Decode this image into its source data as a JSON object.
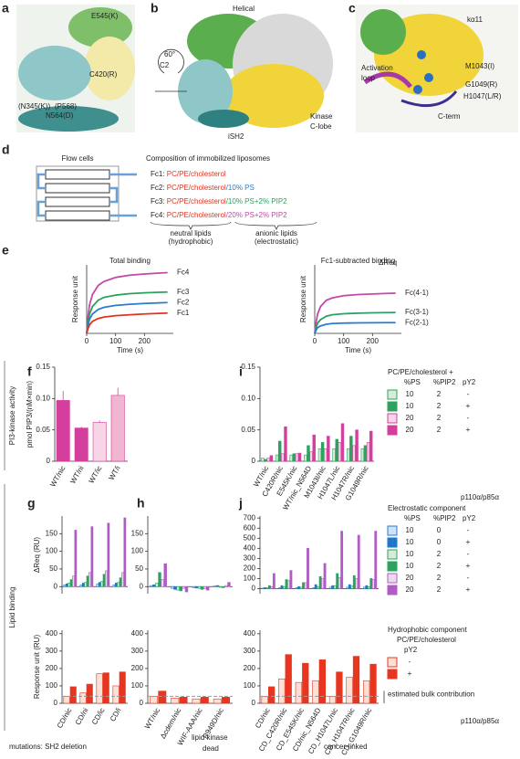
{
  "figure": {
    "panel_labels": [
      "a",
      "b",
      "c",
      "d",
      "e",
      "f",
      "g",
      "h",
      "i",
      "j"
    ],
    "a_labels": [
      "E545(K)",
      "C420(R)",
      "(N345(K))",
      "(P568)",
      "N564(D)"
    ],
    "b_labels": [
      "Helical",
      "C2",
      "iSH2",
      "Kinase",
      "C-lobe",
      "60°"
    ],
    "c_labels": [
      "kα11",
      "Activation",
      "loop",
      "M1043(I)",
      "G1049(R)",
      "H1047(L/R)",
      "C-term"
    ],
    "d": {
      "flow_title": "Flow cells",
      "comp_title": "Composition of immobilized liposomes",
      "rows": [
        [
          "Fc1: ",
          "PC/PE/cholesterol"
        ],
        [
          "Fc2: ",
          "PC/PE/cholesterol",
          "/10% PS"
        ],
        [
          "Fc3: ",
          "PC/PE/cholesterol",
          "/10% PS+2% PIP2"
        ],
        [
          "Fc4: ",
          "PC/PE/cholesterol",
          "/20% PS+2% PIP2"
        ]
      ],
      "row_colors": [
        [
          "#222",
          "#e3321e"
        ],
        [
          "#222",
          "#e3321e",
          "#2b7bd0"
        ],
        [
          "#222",
          "#e3321e",
          "#2ca25f"
        ],
        [
          "#222",
          "#e3321e",
          "#c548a8"
        ]
      ],
      "neutral": [
        "neutral lipids",
        "(hydrophobic)"
      ],
      "anionic": [
        "anionic lipids",
        "(electrostatic)"
      ]
    },
    "side_labels": [
      "PI3-kinase activity",
      "Lipid binding"
    ],
    "bottom_labels": [
      "mutations:  SH2 deletion",
      "lipid kinase",
      "dead",
      "cancer-linked"
    ]
  },
  "chart_data": [
    {
      "type": "line",
      "title": "Total binding",
      "xlabel": "Time (s)",
      "ylabel": "Response unit",
      "xlim": [
        0,
        300
      ],
      "xticks": [
        0,
        100,
        200
      ],
      "ylim": [
        0,
        600
      ],
      "x": [
        0,
        5,
        10,
        20,
        40,
        60,
        100,
        150,
        200,
        250,
        280
      ],
      "series": [
        {
          "name": "Fc4",
          "color": "#c548a8",
          "values": [
            0,
            150,
            250,
            340,
            420,
            455,
            490,
            510,
            520,
            528,
            532
          ]
        },
        {
          "name": "Fc3",
          "color": "#2ca25f",
          "values": [
            0,
            100,
            170,
            235,
            290,
            315,
            335,
            348,
            355,
            360,
            362
          ]
        },
        {
          "name": "Fc2",
          "color": "#2b7bd0",
          "values": [
            0,
            75,
            125,
            170,
            210,
            228,
            245,
            255,
            262,
            267,
            270
          ]
        },
        {
          "name": "Fc1",
          "color": "#e3321e",
          "values": [
            0,
            45,
            75,
            105,
            130,
            143,
            155,
            163,
            170,
            175,
            178
          ]
        }
      ]
    },
    {
      "type": "line",
      "title": "Fc1-subtracted binding",
      "xlabel": "Time (s)",
      "ylabel": "Response unit",
      "annotation": "ΔReq",
      "xlim": [
        0,
        300
      ],
      "xticks": [
        0,
        100,
        200
      ],
      "ylim": [
        0,
        600
      ],
      "x": [
        0,
        5,
        10,
        20,
        40,
        60,
        100,
        150,
        200,
        250,
        280
      ],
      "series": [
        {
          "name": "Fc(4-1)",
          "color": "#c548a8",
          "values": [
            0,
            100,
            170,
            235,
            290,
            310,
            330,
            340,
            345,
            350,
            352
          ]
        },
        {
          "name": "Fc(3-1)",
          "color": "#2ca25f",
          "values": [
            0,
            50,
            90,
            120,
            150,
            163,
            172,
            177,
            180,
            182,
            183
          ]
        },
        {
          "name": "Fc(2-1)",
          "color": "#2b7bd0",
          "values": [
            0,
            30,
            50,
            65,
            80,
            86,
            90,
            92,
            93,
            94,
            94
          ]
        }
      ]
    },
    {
      "type": "bar",
      "ylabel": "pmol PIP3/(nM×min)",
      "ylim": [
        0,
        0.15
      ],
      "yticks": [
        0,
        0.05,
        {
          "value": 0.1,
          "label": "0.10"
        },
        0.15
      ],
      "categories": [
        "WT/nic",
        "WT/ni",
        "WT/ic",
        "WT/i"
      ],
      "series": [
        {
          "colors": [
            "#d43f9e",
            "#d43f9e",
            "#f6d5e6",
            "#f0b5cf"
          ],
          "edge": "#d43f9e",
          "values": [
            0.097,
            0.053,
            0.062,
            0.105
          ],
          "errors": [
            0.015,
            0.002,
            0.003,
            0.012
          ]
        }
      ]
    },
    {
      "type": "bar",
      "ylim": [
        0,
        0.15
      ],
      "yticks": [
        0,
        0.05,
        {
          "value": 0.1,
          "label": "0.10"
        },
        0.15
      ],
      "note": "p110α/p85α",
      "categories": [
        "WT/nic",
        "C420R/nic",
        "E545K/nic",
        "WT/nic_N564D",
        "M1043I/nic",
        "H1047L/nic",
        "H1047R/nic",
        "G1049R/nic"
      ],
      "legend": {
        "title": "PC/PE/cholesterol +",
        "columns": [
          "%PS",
          "%PIP2",
          "pY2"
        ],
        "rows": [
          [
            "10",
            "2",
            "-"
          ],
          [
            "10",
            "2",
            "+"
          ],
          [
            "20",
            "2",
            "-"
          ],
          [
            "20",
            "2",
            "+"
          ]
        ]
      },
      "series": [
        {
          "color": "#d4ecd8",
          "edge": "#2ca25f",
          "values": [
            0.005,
            0.01,
            0.01,
            0.01,
            0.02,
            0.02,
            0.02,
            0.02
          ]
        },
        {
          "color": "#2ca25f",
          "edge": "#2ca25f",
          "values": [
            0.003,
            0.032,
            0.012,
            0.025,
            0.03,
            0.035,
            0.04,
            0.025
          ]
        },
        {
          "color": "#f6d5e6",
          "edge": "#d43f9e",
          "values": [
            0.005,
            0.012,
            0.012,
            0.015,
            0.02,
            0.03,
            0.025,
            0.03
          ]
        },
        {
          "color": "#d43f9e",
          "edge": "#d43f9e",
          "values": [
            0.009,
            0.055,
            0.013,
            0.042,
            0.04,
            0.06,
            0.05,
            0.048
          ]
        }
      ]
    },
    {
      "type": "bar",
      "ylabel": "ΔReq (RU)",
      "ylim": [
        -20,
        200
      ],
      "yticks": [
        0,
        50,
        100,
        150
      ],
      "categories": [
        null,
        null,
        null,
        null
      ],
      "series": [
        {
          "color": "#cfe3f5",
          "edge": "#2b7bd0",
          "values": [
            5,
            5,
            8,
            5
          ]
        },
        {
          "color": "#1f78c8",
          "edge": "#1f78c8",
          "values": [
            8,
            10,
            12,
            10
          ]
        },
        {
          "color": "#d4ecd8",
          "edge": "#2ca25f",
          "values": [
            10,
            12,
            15,
            12
          ]
        },
        {
          "color": "#2ca25f",
          "edge": "#2ca25f",
          "values": [
            20,
            30,
            35,
            25
          ]
        },
        {
          "color": "#ecd9f0",
          "edge": "#b05cc4",
          "values": [
            30,
            40,
            45,
            40
          ]
        },
        {
          "color": "#b05cc4",
          "edge": "#b05cc4",
          "values": [
            160,
            170,
            180,
            195
          ]
        }
      ]
    },
    {
      "type": "bar",
      "ylabel": "Response unit (RU)",
      "ylim": [
        0,
        420
      ],
      "yticks": [
        0,
        100,
        200,
        300,
        400
      ],
      "bulk": 40,
      "categories": [
        "CD/nic",
        "CD/ni",
        "CD/ic",
        "CD/i"
      ],
      "series": [
        {
          "color": "#fde0d6",
          "edge": "#e8351f",
          "values": [
            40,
            60,
            170,
            100
          ]
        },
        {
          "color": "#e8351f",
          "edge": "#e8351f",
          "values": [
            95,
            110,
            175,
            180
          ]
        }
      ]
    },
    {
      "type": "bar",
      "ylim": [
        -20,
        200
      ],
      "yticks": [
        0,
        50,
        100,
        150
      ],
      "categories": [
        null,
        null,
        null,
        null
      ],
      "series": [
        {
          "color": "#cfe3f5",
          "edge": "#2b7bd0",
          "values": [
            3,
            -5,
            -3,
            2
          ]
        },
        {
          "color": "#1f78c8",
          "edge": "#1f78c8",
          "values": [
            5,
            -8,
            -4,
            3
          ]
        },
        {
          "color": "#d4ecd8",
          "edge": "#2ca25f",
          "values": [
            10,
            -10,
            -5,
            -2
          ]
        },
        {
          "color": "#2ca25f",
          "edge": "#2ca25f",
          "values": [
            40,
            -12,
            -8,
            -3
          ]
        },
        {
          "color": "#ecd9f0",
          "edge": "#b05cc4",
          "values": [
            20,
            -5,
            -6,
            3
          ]
        },
        {
          "color": "#b05cc4",
          "edge": "#b05cc4",
          "values": [
            65,
            -15,
            -10,
            12
          ]
        }
      ]
    },
    {
      "type": "bar",
      "ylim": [
        0,
        420
      ],
      "yticks": [
        0,
        100,
        200,
        300,
        400
      ],
      "bulk": 40,
      "categories": [
        "WT/nic",
        "Δcdem/nic",
        "WIF-AAA/nic",
        "R949D/nic"
      ],
      "series": [
        {
          "color": "#fde0d6",
          "edge": "#e8351f",
          "values": [
            40,
            30,
            25,
            25
          ]
        },
        {
          "color": "#e8351f",
          "edge": "#e8351f",
          "values": [
            70,
            35,
            35,
            35
          ]
        }
      ]
    },
    {
      "type": "bar",
      "ylim": [
        -50,
        720
      ],
      "yticks": [
        0,
        100,
        200,
        300,
        400,
        500,
        600,
        700
      ],
      "categories": [
        null,
        null,
        null,
        null,
        null,
        null,
        null
      ],
      "legend": {
        "title": "Electrostatic component",
        "columns": [
          "%PS",
          "%PIP2",
          "pY2"
        ],
        "rows": [
          [
            "10",
            "0",
            "-"
          ],
          [
            "10",
            "0",
            "+"
          ],
          [
            "10",
            "2",
            "-"
          ],
          [
            "10",
            "2",
            "+"
          ],
          [
            "20",
            "2",
            "-"
          ],
          [
            "20",
            "2",
            "+"
          ]
        ]
      },
      "series": [
        {
          "color": "#cfe3f5",
          "edge": "#2b7bd0",
          "values": [
            5,
            10,
            10,
            10,
            15,
            15,
            15
          ]
        },
        {
          "color": "#1f78c8",
          "edge": "#1f78c8",
          "values": [
            10,
            30,
            20,
            40,
            30,
            40,
            30
          ]
        },
        {
          "color": "#d4ecd8",
          "edge": "#2ca25f",
          "values": [
            10,
            20,
            15,
            20,
            30,
            25,
            20
          ]
        },
        {
          "color": "#2ca25f",
          "edge": "#2ca25f",
          "values": [
            30,
            90,
            60,
            120,
            150,
            130,
            100
          ]
        },
        {
          "color": "#ecd9f0",
          "edge": "#b05cc4",
          "values": [
            20,
            80,
            60,
            100,
            110,
            100,
            90
          ]
        },
        {
          "color": "#b05cc4",
          "edge": "#b05cc4",
          "values": [
            150,
            180,
            400,
            250,
            570,
            530,
            570
          ]
        }
      ]
    },
    {
      "type": "bar",
      "ylim": [
        0,
        420
      ],
      "yticks": [
        0,
        100,
        200,
        300,
        400
      ],
      "bulk": 40,
      "bulk_label": "estimated bulk contribution",
      "note": "p110α/p85α",
      "categories": [
        "CD/nic",
        "CD_C420R/nic",
        "CD_E545K/nic",
        "CD/nic_N564D",
        "CD_H1047L/nic",
        "CD_H1047R/nic",
        "CD_G1049R/nic"
      ],
      "legend": {
        "title": "Hydrophobic component",
        "subtitle": "PC/PE/cholesterol",
        "columns": [
          "pY2"
        ],
        "rows": [
          [
            "-"
          ],
          [
            "+"
          ]
        ]
      },
      "series": [
        {
          "color": "#fde0d6",
          "edge": "#e8351f",
          "values": [
            40,
            140,
            120,
            130,
            40,
            150,
            130
          ]
        },
        {
          "color": "#e8351f",
          "edge": "#e8351f",
          "values": [
            95,
            280,
            230,
            250,
            180,
            270,
            225
          ]
        }
      ]
    }
  ]
}
